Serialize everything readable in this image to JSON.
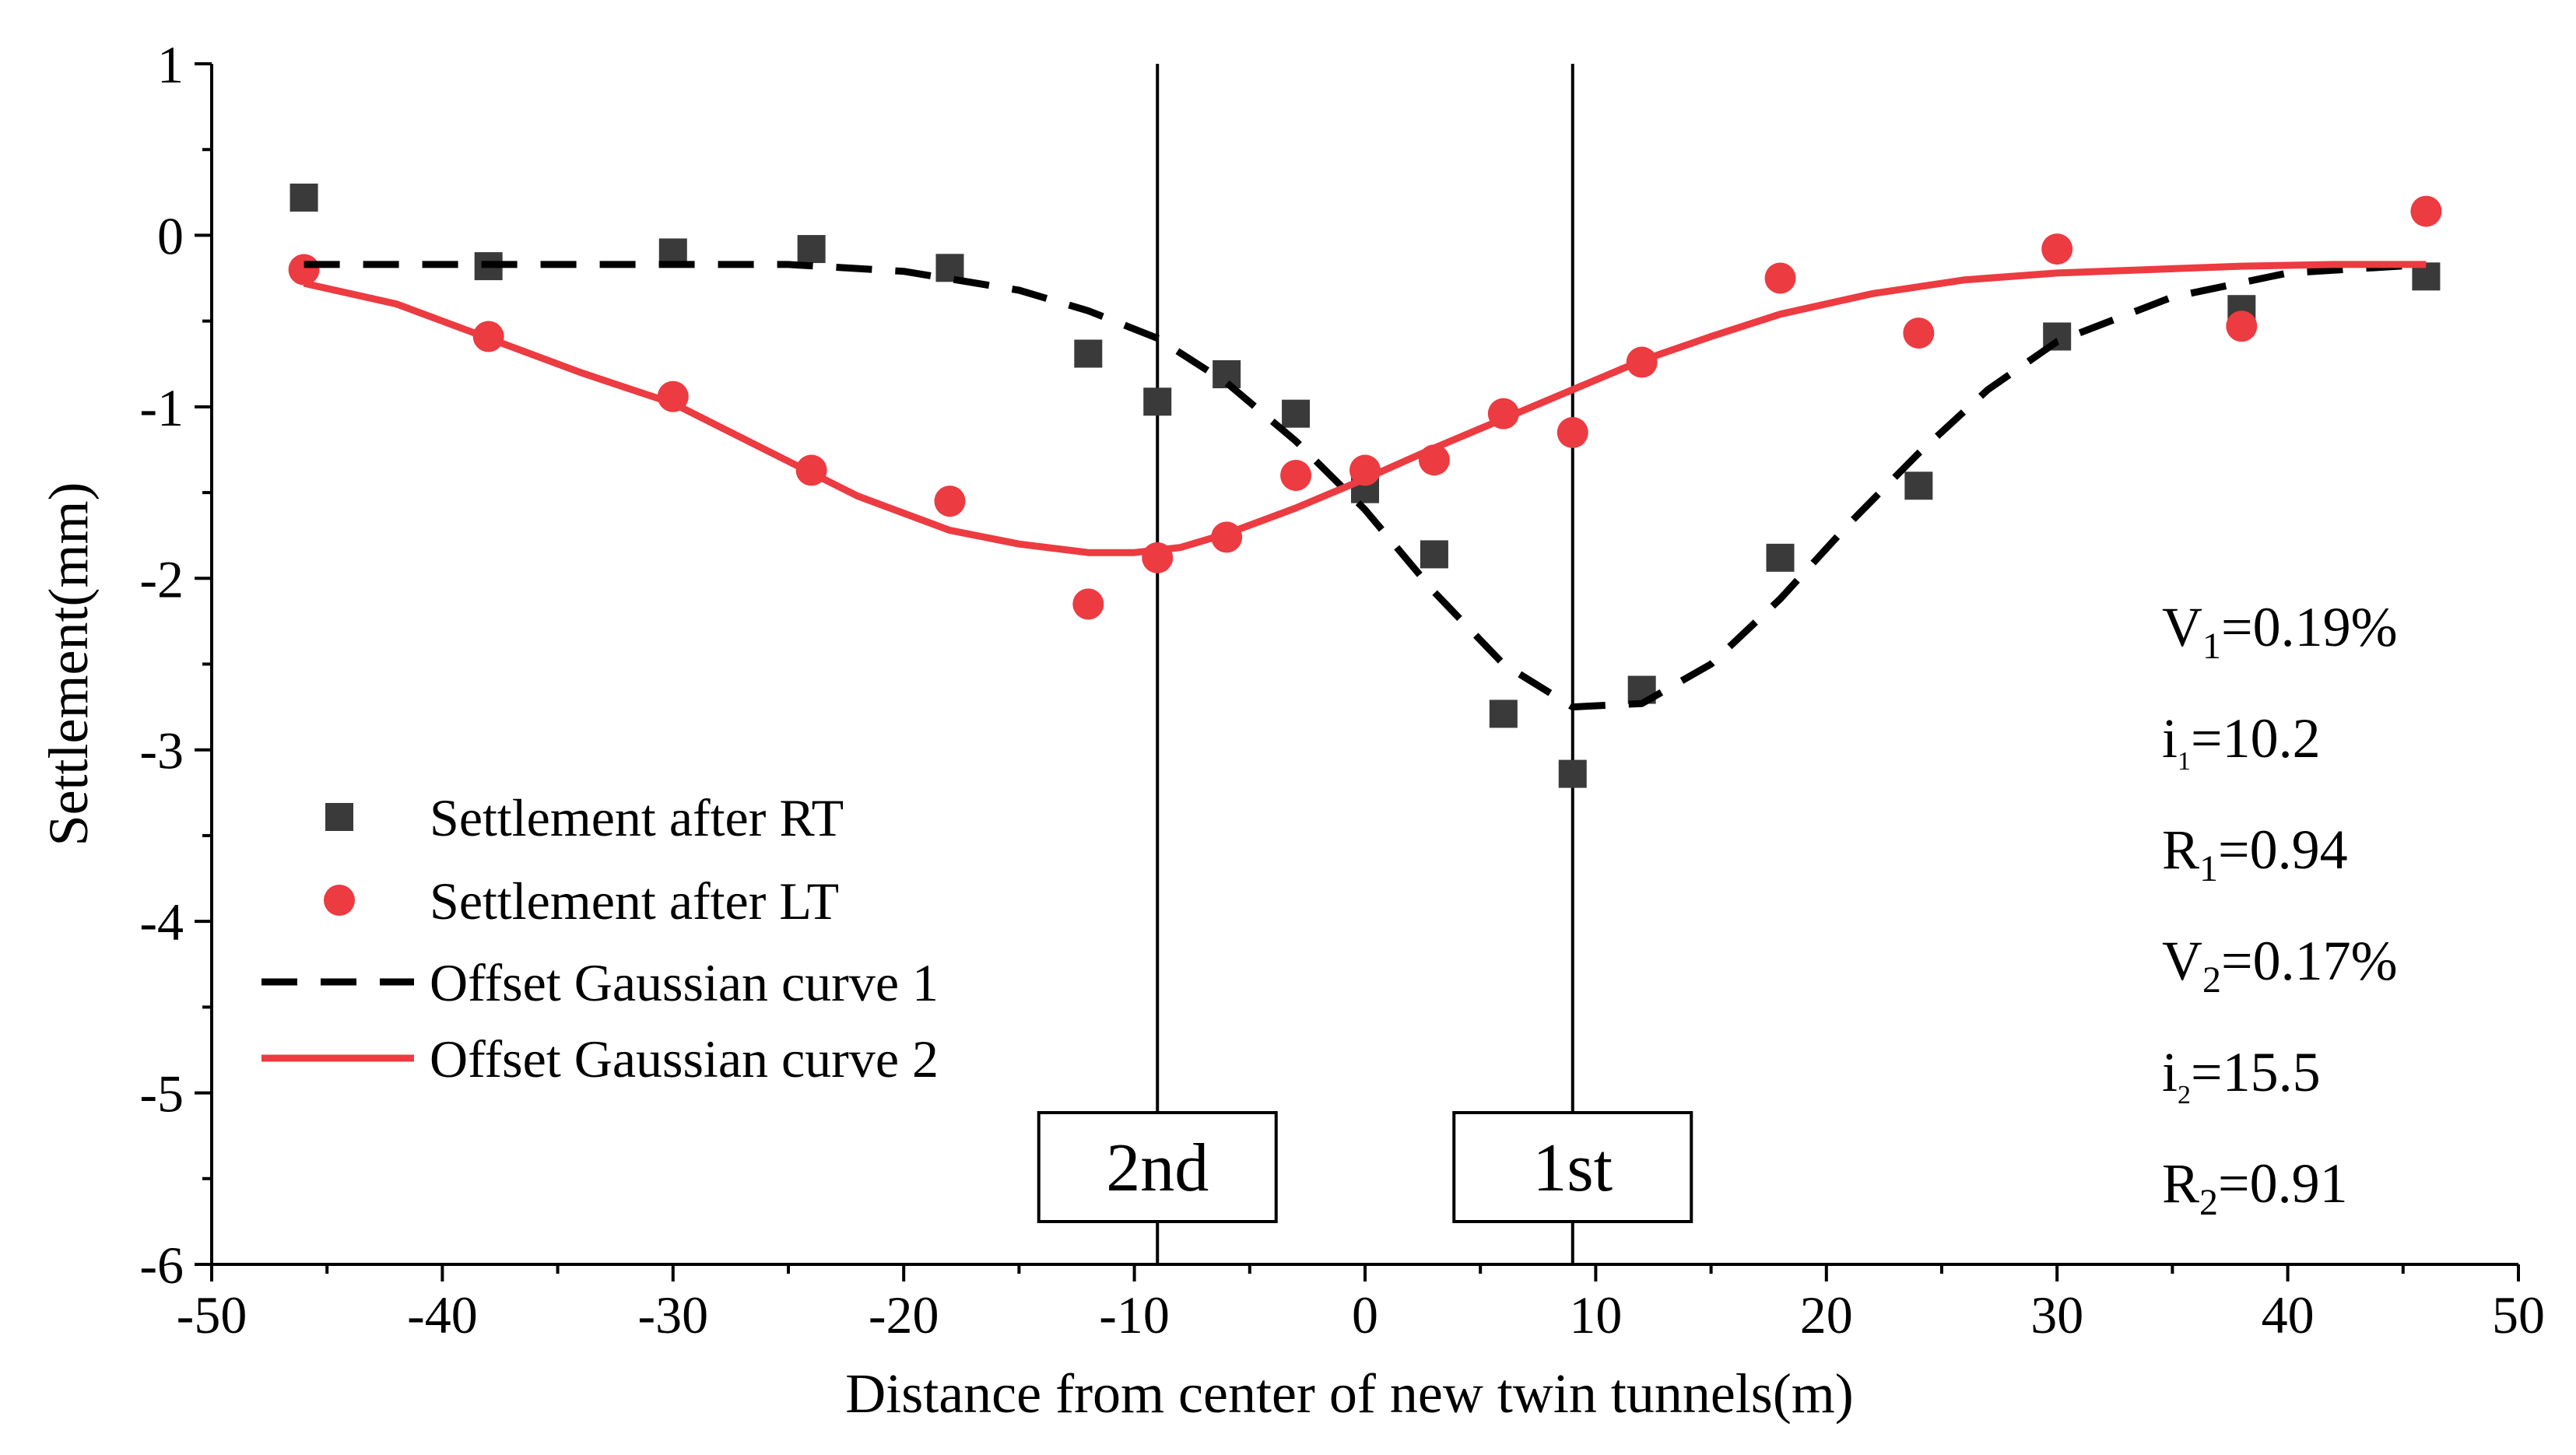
{
  "chart_data": {
    "type": "scatter",
    "xlabel": "Distance from center of new twin tunnels(m)",
    "ylabel": "Settlement(mm)",
    "xlim": [
      -50,
      50
    ],
    "ylim": [
      -6,
      1
    ],
    "xticks": [
      -50,
      -40,
      -30,
      -20,
      -10,
      0,
      10,
      20,
      30,
      40,
      50
    ],
    "yticks": [
      -6,
      -5,
      -4,
      -3,
      -2,
      -1,
      0,
      1
    ],
    "xtick_labels": [
      "-50",
      "-40",
      "-30",
      "-20",
      "-10",
      "0",
      "10",
      "20",
      "30",
      "40",
      "50"
    ],
    "ytick_labels": [
      "-6",
      "-5",
      "-4",
      "-3",
      "-2",
      "-1",
      "0",
      "1"
    ],
    "grid": false,
    "legend_position": "left",
    "series": [
      {
        "name": "Settlement after RT",
        "kind": "scatter",
        "marker": "square",
        "color": "#3a3a3a",
        "x": [
          -46,
          -38,
          -30,
          -24,
          -18,
          -12,
          -9,
          -6,
          -3,
          0,
          3,
          6,
          9,
          12,
          18,
          24,
          30,
          38,
          46
        ],
        "y": [
          0.22,
          -0.18,
          -0.1,
          -0.08,
          -0.19,
          -0.69,
          -0.97,
          -0.81,
          -1.04,
          -1.48,
          -1.86,
          -2.79,
          -3.14,
          -2.65,
          -1.88,
          -1.46,
          -0.59,
          -0.43,
          -0.24
        ]
      },
      {
        "name": "Settlement after LT",
        "kind": "scatter",
        "marker": "circle",
        "color": "#ec3b41",
        "x": [
          -46,
          -38,
          -30,
          -24,
          -18,
          -12,
          -9,
          -6,
          -3,
          0,
          3,
          6,
          9,
          12,
          18,
          24,
          30,
          38,
          46
        ],
        "y": [
          -0.2,
          -0.59,
          -0.94,
          -1.37,
          -1.55,
          -2.15,
          -1.88,
          -1.76,
          -1.4,
          -1.37,
          -1.31,
          -1.04,
          -1.15,
          -0.74,
          -0.25,
          -0.57,
          -0.08,
          -0.53,
          0.14
        ]
      },
      {
        "name": "Offset Gaussian curve 1",
        "kind": "line",
        "dash": true,
        "color": "#000000",
        "x": [
          -46,
          -40,
          -35,
          -30,
          -25,
          -20,
          -15,
          -12,
          -9,
          -6,
          -3,
          0,
          3,
          6,
          9,
          12,
          15,
          18,
          21,
          24,
          27,
          30,
          35,
          40,
          46
        ],
        "y": [
          -0.17,
          -0.17,
          -0.17,
          -0.17,
          -0.17,
          -0.21,
          -0.32,
          -0.44,
          -0.6,
          -0.86,
          -1.2,
          -1.6,
          -2.08,
          -2.5,
          -2.75,
          -2.73,
          -2.5,
          -2.12,
          -1.68,
          -1.27,
          -0.9,
          -0.62,
          -0.36,
          -0.22,
          -0.17
        ]
      },
      {
        "name": "Offset Gaussian curve 2",
        "kind": "line",
        "dash": false,
        "color": "#ec3b41",
        "x": [
          -46,
          -42,
          -38,
          -34,
          -30,
          -26,
          -22,
          -18,
          -15,
          -12,
          -10,
          -8,
          -6,
          -3,
          0,
          3,
          6,
          9,
          12,
          15,
          18,
          22,
          26,
          30,
          34,
          38,
          42,
          46
        ],
        "y": [
          -0.28,
          -0.4,
          -0.6,
          -0.8,
          -0.98,
          -1.25,
          -1.52,
          -1.72,
          -1.8,
          -1.85,
          -1.85,
          -1.82,
          -1.74,
          -1.59,
          -1.42,
          -1.24,
          -1.07,
          -0.9,
          -0.73,
          -0.59,
          -0.46,
          -0.34,
          -0.26,
          -0.22,
          -0.2,
          -0.18,
          -0.17,
          -0.17
        ]
      }
    ],
    "vertical_lines": [
      {
        "x": -9,
        "label": "2nd"
      },
      {
        "x": 9,
        "label": "1st"
      }
    ],
    "parameters": [
      {
        "base": "V",
        "sub": "1",
        "suffix": "=0.19%"
      },
      {
        "base": "i",
        "sub": "1",
        "suffix": "=10.2"
      },
      {
        "base": "R",
        "sub": "1",
        "suffix": "=0.94"
      },
      {
        "base": "V",
        "sub": "2",
        "suffix": "=0.17%"
      },
      {
        "base": "i",
        "sub": "2",
        "suffix": "=15.5"
      },
      {
        "base": "R",
        "sub": "2",
        "suffix": "=0.91"
      }
    ]
  }
}
